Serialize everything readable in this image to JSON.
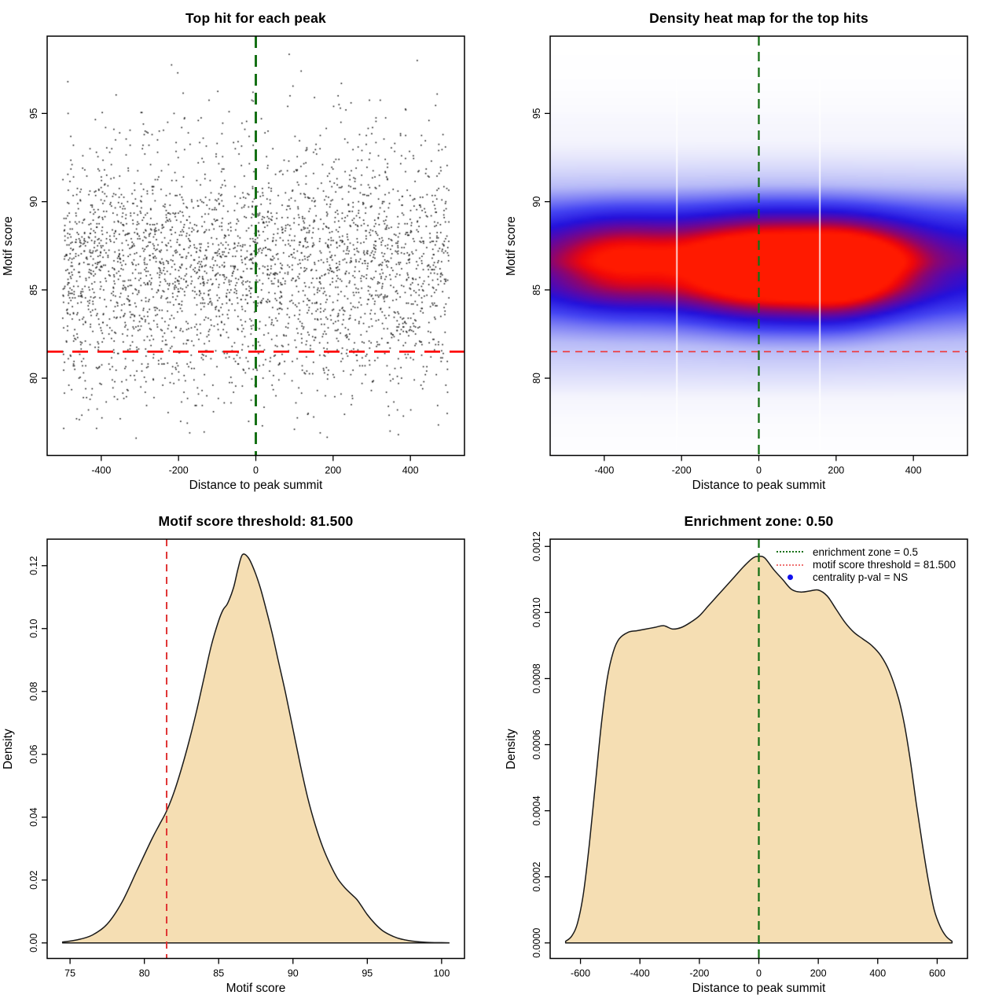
{
  "colors": {
    "background": "#ffffff",
    "green_line": "#157015",
    "red_line": "#ff0000",
    "wheat_fill": "#f5deb3",
    "point_color": "#161616",
    "blue_dot": "#1111ee"
  },
  "chart_data": [
    {
      "type": "scatter",
      "title": "Top hit for each peak",
      "xlabel": "Distance to peak summit",
      "ylabel": "Motif score",
      "x_range": [
        -500,
        500
      ],
      "y_range": [
        76.5,
        98.5
      ],
      "x_tick_values": [
        -400,
        -200,
        0,
        200,
        400
      ],
      "x_tick_labels": [
        "-400",
        "-200",
        "0",
        "200",
        "400"
      ],
      "y_tick_values": [
        80,
        85,
        90,
        95
      ],
      "y_tick_labels": [
        "80",
        "85",
        "90",
        "95"
      ],
      "n_points": 3200,
      "seed": 1337,
      "point_color": "#161616",
      "vline": {
        "x": 0,
        "color": "#157015",
        "width": 3,
        "dash": [
          15,
          9
        ]
      },
      "hline": {
        "y": 81.5,
        "color": "#ff0000",
        "width": 2.6,
        "dash": [
          20,
          12
        ]
      }
    },
    {
      "type": "heatmap",
      "title": "Density heat map for the top hits",
      "xlabel": "Distance to peak summit",
      "ylabel": "Motif score",
      "x_range": [
        -500,
        500
      ],
      "y_range": [
        76.5,
        98.5
      ],
      "x_tick_values": [
        -400,
        -200,
        0,
        200,
        400
      ],
      "x_tick_labels": [
        "-400",
        "-200",
        "0",
        "200",
        "400"
      ],
      "y_tick_values": [
        80,
        85,
        90,
        95
      ],
      "y_tick_labels": [
        "80",
        "85",
        "90",
        "95"
      ],
      "base_scale": 0.62,
      "tail_lift": 0.85,
      "hotspots": [
        {
          "x": 40,
          "y": 86.1,
          "sx": 115,
          "sy": 2.0,
          "a": 0.55
        },
        {
          "x": 210,
          "y": 86.0,
          "sx": 85,
          "sy": 1.9,
          "a": 0.46
        },
        {
          "x": -360,
          "y": 86.5,
          "sx": 115,
          "sy": 1.8,
          "a": 0.32
        },
        {
          "x": -120,
          "y": 86.2,
          "sx": 95,
          "sy": 1.8,
          "a": 0.22
        },
        {
          "x": 330,
          "y": 86.3,
          "sx": 85,
          "sy": 1.7,
          "a": 0.24
        },
        {
          "x": 0,
          "y": 86.2,
          "sx": 430,
          "sy": 2.5,
          "a": 0.16
        }
      ],
      "colormap": [
        [
          0.0,
          "#ffffff"
        ],
        [
          0.12,
          "#f4f4fd"
        ],
        [
          0.3,
          "#b7baf7"
        ],
        [
          0.48,
          "#4545f2"
        ],
        [
          0.6,
          "#2311dc"
        ],
        [
          0.7,
          "#5a08aa"
        ],
        [
          0.79,
          "#8c0570"
        ],
        [
          0.86,
          "#c20335"
        ],
        [
          0.93,
          "#f10708"
        ],
        [
          1.0,
          "#ff1a00"
        ]
      ],
      "white_lines_x": [
        -212,
        158
      ],
      "vline": {
        "x": 0,
        "color": "#157015",
        "width": 2.3,
        "dash": [
          12,
          8
        ]
      },
      "hline": {
        "y": 81.5,
        "color": "#f03636",
        "width": 1.6,
        "dash": [
          9,
          7
        ]
      }
    },
    {
      "type": "area",
      "title": "Motif score threshold: 81.500",
      "xlabel": "Motif score",
      "ylabel": "Density",
      "x_range": [
        74.5,
        100.5
      ],
      "y_range": [
        0,
        0.1235
      ],
      "x_tick_values": [
        75,
        80,
        85,
        90,
        95,
        100
      ],
      "x_tick_labels": [
        "75",
        "80",
        "85",
        "90",
        "95",
        "100"
      ],
      "y_tick_values": [
        0,
        0.02,
        0.04,
        0.06,
        0.08,
        0.1,
        0.12
      ],
      "y_tick_labels": [
        "0.00",
        "0.02",
        "0.04",
        "0.06",
        "0.08",
        "0.10",
        "0.12"
      ],
      "fill": "#f5deb3",
      "stroke": "#1a1a1a",
      "points": [
        [
          74.5,
          0.0003
        ],
        [
          75.5,
          0.001
        ],
        [
          76.5,
          0.0025
        ],
        [
          77.5,
          0.006
        ],
        [
          78.5,
          0.013
        ],
        [
          79.5,
          0.023
        ],
        [
          80.5,
          0.033
        ],
        [
          81.0,
          0.0375
        ],
        [
          81.5,
          0.042
        ],
        [
          82.0,
          0.048
        ],
        [
          82.5,
          0.0555
        ],
        [
          83.0,
          0.064
        ],
        [
          83.5,
          0.0735
        ],
        [
          84.0,
          0.084
        ],
        [
          84.5,
          0.0945
        ],
        [
          85.0,
          0.1025
        ],
        [
          85.3,
          0.106
        ],
        [
          85.6,
          0.108
        ],
        [
          86.0,
          0.113
        ],
        [
          86.3,
          0.119
        ],
        [
          86.6,
          0.1235
        ],
        [
          87.0,
          0.1225
        ],
        [
          87.4,
          0.1185
        ],
        [
          87.8,
          0.113
        ],
        [
          88.2,
          0.106
        ],
        [
          88.6,
          0.0985
        ],
        [
          89.0,
          0.09
        ],
        [
          89.5,
          0.0795
        ],
        [
          90.0,
          0.068
        ],
        [
          90.5,
          0.0565
        ],
        [
          91.0,
          0.046
        ],
        [
          91.5,
          0.0375
        ],
        [
          92.0,
          0.0305
        ],
        [
          92.5,
          0.025
        ],
        [
          93.0,
          0.0205
        ],
        [
          93.5,
          0.0175
        ],
        [
          94.0,
          0.0152
        ],
        [
          94.3,
          0.0138
        ],
        [
          94.6,
          0.0118
        ],
        [
          95.0,
          0.009
        ],
        [
          95.5,
          0.0062
        ],
        [
          96.0,
          0.004
        ],
        [
          96.5,
          0.0026
        ],
        [
          97.0,
          0.0016
        ],
        [
          97.5,
          0.001
        ],
        [
          98.0,
          0.0006
        ],
        [
          99.0,
          0.0002
        ],
        [
          100.0,
          8e-05
        ],
        [
          100.5,
          3e-05
        ]
      ],
      "vline": {
        "x": 81.5,
        "color": "#e03434",
        "width": 2,
        "dash": [
          9,
          7
        ]
      }
    },
    {
      "type": "area",
      "title": "Enrichment zone: 0.50",
      "xlabel": "Distance to peak summit",
      "ylabel": "Density",
      "x_range": [
        -650,
        650
      ],
      "y_range": [
        0,
        0.001175
      ],
      "x_tick_values": [
        -600,
        -400,
        -200,
        0,
        200,
        400,
        600
      ],
      "x_tick_labels": [
        "-600",
        "-400",
        "-200",
        "0",
        "200",
        "400",
        "600"
      ],
      "y_tick_values": [
        0,
        0.0002,
        0.0004,
        0.0006,
        0.0008,
        0.001,
        0.0012
      ],
      "y_tick_labels": [
        "0.0000",
        "0.0002",
        "0.0004",
        "0.0006",
        "0.0008",
        "0.0010",
        "0.0012"
      ],
      "fill": "#f5deb3",
      "stroke": "#1a1a1a",
      "points": [
        [
          -650,
          5e-06
        ],
        [
          -630,
          2e-05
        ],
        [
          -610,
          6e-05
        ],
        [
          -590,
          0.00015
        ],
        [
          -570,
          0.0003
        ],
        [
          -550,
          0.00048
        ],
        [
          -530,
          0.00066
        ],
        [
          -510,
          0.0008
        ],
        [
          -490,
          0.00088
        ],
        [
          -470,
          0.00092
        ],
        [
          -440,
          0.00094
        ],
        [
          -410,
          0.000945
        ],
        [
          -380,
          0.00095
        ],
        [
          -350,
          0.000955
        ],
        [
          -320,
          0.00096
        ],
        [
          -290,
          0.00095
        ],
        [
          -260,
          0.000955
        ],
        [
          -230,
          0.00097
        ],
        [
          -200,
          0.00099
        ],
        [
          -170,
          0.00102
        ],
        [
          -140,
          0.00105
        ],
        [
          -110,
          0.00108
        ],
        [
          -80,
          0.00111
        ],
        [
          -50,
          0.00114
        ],
        [
          -20,
          0.001165
        ],
        [
          0,
          0.00117
        ],
        [
          20,
          0.001165
        ],
        [
          50,
          0.00113
        ],
        [
          80,
          0.0011
        ],
        [
          110,
          0.00107
        ],
        [
          140,
          0.001062
        ],
        [
          170,
          0.001065
        ],
        [
          200,
          0.001068
        ],
        [
          230,
          0.00105
        ],
        [
          260,
          0.00101
        ],
        [
          290,
          0.00097
        ],
        [
          320,
          0.00094
        ],
        [
          350,
          0.00092
        ],
        [
          380,
          0.0009
        ],
        [
          410,
          0.00087
        ],
        [
          440,
          0.00082
        ],
        [
          470,
          0.00074
        ],
        [
          490,
          0.00066
        ],
        [
          510,
          0.00055
        ],
        [
          530,
          0.00042
        ],
        [
          550,
          0.0003
        ],
        [
          570,
          0.00019
        ],
        [
          590,
          0.0001
        ],
        [
          610,
          5e-05
        ],
        [
          630,
          2e-05
        ],
        [
          650,
          5e-06
        ]
      ],
      "vline": {
        "x": 0,
        "color": "#157015",
        "width": 2.3,
        "dash": [
          11,
          7
        ]
      },
      "legend": [
        {
          "label": "enrichment zone = 0.5",
          "swatch": "dotted",
          "color": "#157015"
        },
        {
          "label": "motif score threshold = 81.500",
          "swatch": "dotted",
          "color": "#ef7272"
        },
        {
          "label": "centrality p-val = NS",
          "swatch": "dot",
          "color": "#1111ee"
        }
      ]
    }
  ]
}
